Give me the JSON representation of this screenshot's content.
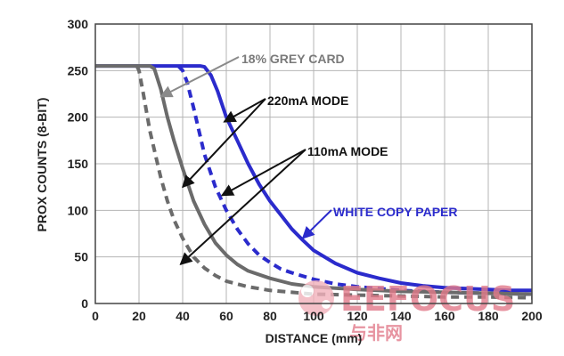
{
  "chart_data": {
    "type": "line",
    "title": "",
    "xlabel": "DISTANCE (mm)",
    "ylabel": "PROX COUNTS (8-BIT)",
    "xlim": [
      0,
      200
    ],
    "ylim": [
      0,
      300
    ],
    "x_ticks": [
      "0",
      "20",
      "40",
      "60",
      "80",
      "100",
      "120",
      "140",
      "160",
      "180",
      "200"
    ],
    "y_ticks": [
      "0",
      "50",
      "100",
      "150",
      "200",
      "250",
      "300"
    ],
    "grid": true,
    "legend": "none",
    "series": [
      {
        "color": "#2b2bcc",
        "dash": "solid",
        "points": [
          [
            0,
            255
          ],
          [
            48,
            255
          ],
          [
            50,
            254
          ],
          [
            53,
            245
          ],
          [
            56,
            228
          ],
          [
            60,
            200
          ],
          [
            65,
            175
          ],
          [
            70,
            150
          ],
          [
            75,
            128
          ],
          [
            80,
            110
          ],
          [
            85,
            95
          ],
          [
            90,
            80
          ],
          [
            95,
            68
          ],
          [
            100,
            57
          ],
          [
            110,
            43
          ],
          [
            120,
            33
          ],
          [
            130,
            27
          ],
          [
            140,
            22
          ],
          [
            150,
            19
          ],
          [
            160,
            17
          ],
          [
            170,
            16
          ],
          [
            180,
            15
          ],
          [
            190,
            14
          ],
          [
            200,
            14
          ]
        ]
      },
      {
        "color": "#2b2bcc",
        "dash": "dashed",
        "points": [
          [
            38,
            255
          ],
          [
            40,
            250
          ],
          [
            42,
            238
          ],
          [
            45,
            210
          ],
          [
            48,
            180
          ],
          [
            50,
            160
          ],
          [
            55,
            125
          ],
          [
            60,
            100
          ],
          [
            65,
            80
          ],
          [
            70,
            64
          ],
          [
            75,
            52
          ],
          [
            80,
            44
          ],
          [
            85,
            37
          ],
          [
            90,
            33
          ],
          [
            100,
            26
          ],
          [
            110,
            21
          ],
          [
            120,
            18
          ],
          [
            130,
            16
          ],
          [
            140,
            14
          ],
          [
            160,
            12
          ],
          [
            180,
            11
          ],
          [
            200,
            10
          ]
        ]
      },
      {
        "color": "#6b6b6b",
        "dash": "solid",
        "points": [
          [
            0,
            255
          ],
          [
            25,
            255
          ],
          [
            27,
            252
          ],
          [
            30,
            230
          ],
          [
            33,
            200
          ],
          [
            36,
            175
          ],
          [
            40,
            145
          ],
          [
            45,
            110
          ],
          [
            50,
            85
          ],
          [
            55,
            65
          ],
          [
            60,
            52
          ],
          [
            65,
            42
          ],
          [
            70,
            35
          ],
          [
            80,
            27
          ],
          [
            90,
            21
          ],
          [
            100,
            18
          ],
          [
            120,
            15
          ],
          [
            140,
            13
          ],
          [
            160,
            12
          ],
          [
            180,
            11
          ],
          [
            200,
            10
          ]
        ]
      },
      {
        "color": "#6b6b6b",
        "dash": "dashed",
        "points": [
          [
            19,
            255
          ],
          [
            20,
            250
          ],
          [
            22,
            225
          ],
          [
            25,
            185
          ],
          [
            28,
            155
          ],
          [
            30,
            135
          ],
          [
            33,
            110
          ],
          [
            36,
            90
          ],
          [
            40,
            70
          ],
          [
            45,
            50
          ],
          [
            50,
            38
          ],
          [
            55,
            30
          ],
          [
            60,
            24
          ],
          [
            70,
            18
          ],
          [
            80,
            14
          ],
          [
            90,
            12
          ],
          [
            100,
            10
          ],
          [
            120,
            9
          ],
          [
            140,
            8
          ],
          [
            160,
            7
          ],
          [
            180,
            7
          ],
          [
            200,
            6
          ]
        ]
      }
    ],
    "annotations": [
      {
        "text": "18% GREY CARD",
        "color": "#7a7a7a"
      },
      {
        "text": "220mA MODE",
        "color": "#111111"
      },
      {
        "text": "110mA MODE",
        "color": "#111111"
      },
      {
        "text": "WHITE COPY PAPER",
        "color": "#2b2bcc"
      }
    ]
  },
  "watermark": {
    "logo_text": "EEFOCUS",
    "sub_text": "与非网",
    "color": "#e27a8a"
  }
}
